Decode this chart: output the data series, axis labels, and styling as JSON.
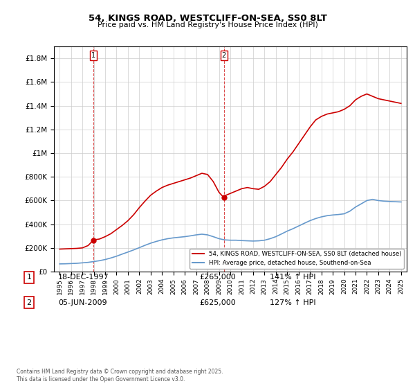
{
  "title_line1": "54, KINGS ROAD, WESTCLIFF-ON-SEA, SS0 8LT",
  "title_line2": "Price paid vs. HM Land Registry's House Price Index (HPI)",
  "ylabel": "",
  "xlabel": "",
  "background_color": "#ffffff",
  "grid_color": "#cccccc",
  "red_color": "#cc0000",
  "blue_color": "#6699cc",
  "sale1": {
    "label": "1",
    "date": "18-DEC-1997",
    "price": 265000,
    "hpi_pct": "141% ↑ HPI",
    "x": 1997.96
  },
  "sale2": {
    "label": "2",
    "date": "05-JUN-2009",
    "price": 625000,
    "hpi_pct": "127% ↑ HPI",
    "x": 2009.43
  },
  "ylim": [
    0,
    1900000
  ],
  "xlim": [
    1994.5,
    2025.5
  ],
  "legend_label1": "54, KINGS ROAD, WESTCLIFF-ON-SEA, SS0 8LT (detached house)",
  "legend_label2": "HPI: Average price, detached house, Southend-on-Sea",
  "footer": "Contains HM Land Registry data © Crown copyright and database right 2025.\nThis data is licensed under the Open Government Licence v3.0.",
  "red_series": {
    "x": [
      1995,
      1995.5,
      1996,
      1996.5,
      1997,
      1997.5,
      1997.96,
      1998,
      1998.5,
      1999,
      1999.5,
      2000,
      2000.5,
      2001,
      2001.5,
      2002,
      2002.5,
      2003,
      2003.5,
      2004,
      2004.5,
      2005,
      2005.5,
      2006,
      2006.5,
      2007,
      2007.5,
      2008,
      2008.5,
      2009,
      2009.43,
      2009.5,
      2010,
      2010.5,
      2011,
      2011.5,
      2012,
      2012.5,
      2013,
      2013.5,
      2014,
      2014.5,
      2015,
      2015.5,
      2016,
      2016.5,
      2017,
      2017.5,
      2018,
      2018.5,
      2019,
      2019.5,
      2020,
      2020.5,
      2021,
      2021.5,
      2022,
      2022.5,
      2023,
      2023.5,
      2024,
      2024.5,
      2025
    ],
    "y": [
      190000,
      192000,
      194000,
      196000,
      200000,
      220000,
      265000,
      268000,
      275000,
      295000,
      320000,
      355000,
      390000,
      430000,
      480000,
      540000,
      595000,
      645000,
      680000,
      710000,
      730000,
      745000,
      760000,
      775000,
      790000,
      810000,
      830000,
      820000,
      760000,
      670000,
      625000,
      640000,
      660000,
      680000,
      700000,
      710000,
      700000,
      695000,
      720000,
      760000,
      820000,
      880000,
      950000,
      1010000,
      1080000,
      1150000,
      1220000,
      1280000,
      1310000,
      1330000,
      1340000,
      1350000,
      1370000,
      1400000,
      1450000,
      1480000,
      1500000,
      1480000,
      1460000,
      1450000,
      1440000,
      1430000,
      1420000
    ]
  },
  "blue_series": {
    "x": [
      1995,
      1995.5,
      1996,
      1996.5,
      1997,
      1997.5,
      1998,
      1998.5,
      1999,
      1999.5,
      2000,
      2000.5,
      2001,
      2001.5,
      2002,
      2002.5,
      2003,
      2003.5,
      2004,
      2004.5,
      2005,
      2005.5,
      2006,
      2006.5,
      2007,
      2007.5,
      2008,
      2008.5,
      2009,
      2009.5,
      2010,
      2010.5,
      2011,
      2011.5,
      2012,
      2012.5,
      2013,
      2013.5,
      2014,
      2014.5,
      2015,
      2015.5,
      2016,
      2016.5,
      2017,
      2017.5,
      2018,
      2018.5,
      2019,
      2019.5,
      2020,
      2020.5,
      2021,
      2021.5,
      2022,
      2022.5,
      2023,
      2023.5,
      2024,
      2024.5,
      2025
    ],
    "y": [
      65000,
      66000,
      68000,
      70000,
      74000,
      78000,
      85000,
      92000,
      102000,
      115000,
      130000,
      148000,
      165000,
      183000,
      202000,
      222000,
      240000,
      255000,
      268000,
      278000,
      285000,
      290000,
      295000,
      302000,
      310000,
      316000,
      310000,
      295000,
      278000,
      268000,
      265000,
      265000,
      262000,
      260000,
      258000,
      260000,
      265000,
      278000,
      295000,
      318000,
      342000,
      362000,
      385000,
      408000,
      430000,
      448000,
      462000,
      472000,
      478000,
      482000,
      488000,
      510000,
      545000,
      572000,
      600000,
      610000,
      600000,
      595000,
      592000,
      590000,
      588000
    ]
  }
}
